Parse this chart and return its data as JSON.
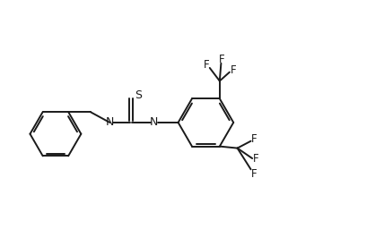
{
  "bg_color": "#ffffff",
  "line_color": "#1a1a1a",
  "line_width": 1.4,
  "font_size": 8.5,
  "figsize": [
    4.28,
    2.56
  ],
  "dpi": 100,
  "xlim": [
    0,
    10.8
  ],
  "ylim": [
    1.0,
    7.2
  ]
}
